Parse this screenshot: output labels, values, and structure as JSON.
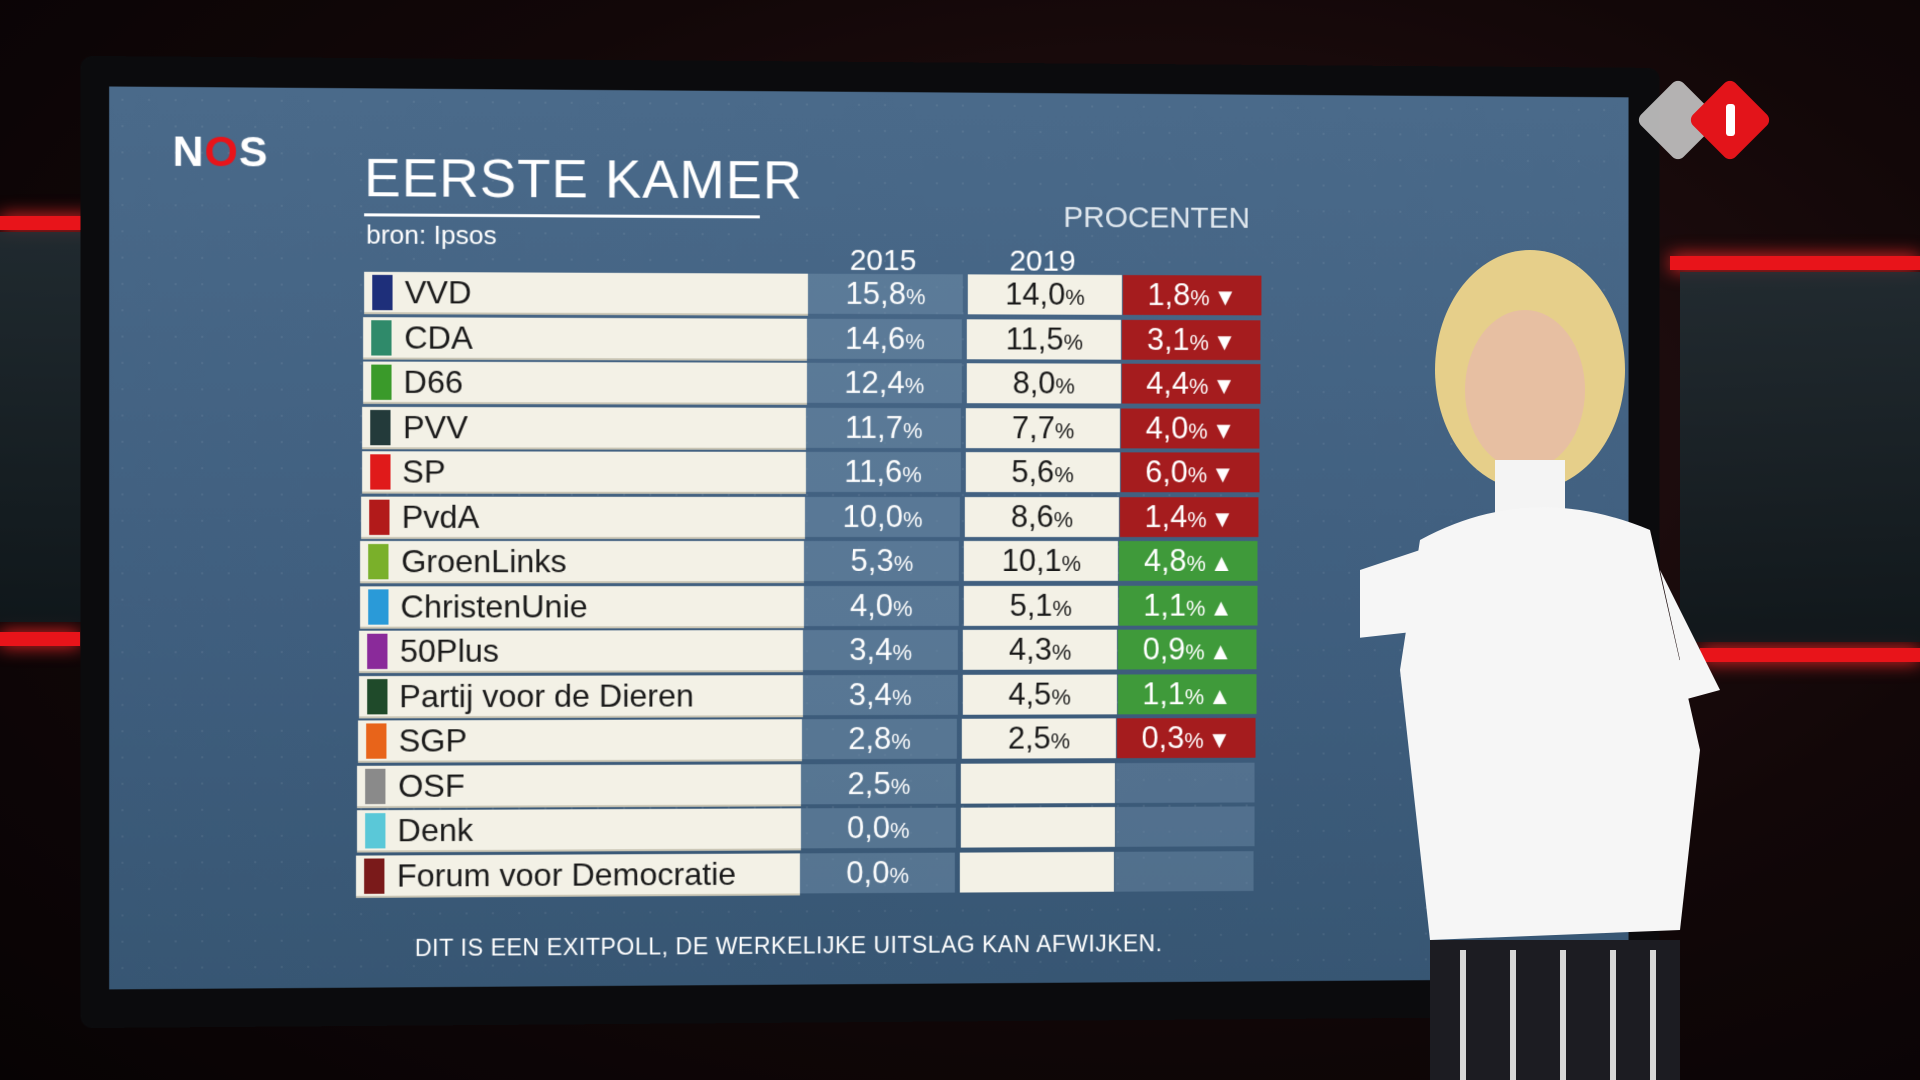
{
  "broadcaster": "NOS",
  "channel_logo": "npo-1-logo",
  "graphic": {
    "title": "EERSTE KAMER",
    "source": "bron: Ipsos",
    "unit": "PROCENTEN",
    "col_2015": "2015",
    "col_2019": "2019",
    "footer": "DIT IS EEN EXITPOLL, DE WERKELIJKE UITSLAG KAN AFWIJKEN.",
    "parties": [
      {
        "name": "VVD",
        "color": "#1e2f7a",
        "v2015": "15,8",
        "v2019": "14,0",
        "change": "1,8",
        "dir": "down"
      },
      {
        "name": "CDA",
        "color": "#2f8a6a",
        "v2015": "14,6",
        "v2019": "11,5",
        "change": "3,1",
        "dir": "down"
      },
      {
        "name": "D66",
        "color": "#3a9a2a",
        "v2015": "12,4",
        "v2019": "8,0",
        "change": "4,4",
        "dir": "down"
      },
      {
        "name": "PVV",
        "color": "#233a3a",
        "v2015": "11,7",
        "v2019": "7,7",
        "change": "4,0",
        "dir": "down"
      },
      {
        "name": "SP",
        "color": "#e01a1a",
        "v2015": "11,6",
        "v2019": "5,6",
        "change": "6,0",
        "dir": "down"
      },
      {
        "name": "PvdA",
        "color": "#b21a1a",
        "v2015": "10,0",
        "v2019": "8,6",
        "change": "1,4",
        "dir": "down"
      },
      {
        "name": "GroenLinks",
        "color": "#7ab02a",
        "v2015": "5,3",
        "v2019": "10,1",
        "change": "4,8",
        "dir": "up"
      },
      {
        "name": "ChristenUnie",
        "color": "#2a9ad8",
        "v2015": "4,0",
        "v2019": "5,1",
        "change": "1,1",
        "dir": "up"
      },
      {
        "name": "50Plus",
        "color": "#8a2a9a",
        "v2015": "3,4",
        "v2019": "4,3",
        "change": "0,9",
        "dir": "up"
      },
      {
        "name": "Partij voor de Dieren",
        "color": "#1f4a2a",
        "v2015": "3,4",
        "v2019": "4,5",
        "change": "1,1",
        "dir": "up"
      },
      {
        "name": "SGP",
        "color": "#e8641a",
        "v2015": "2,8",
        "v2019": "2,5",
        "change": "0,3",
        "dir": "down"
      },
      {
        "name": "OSF",
        "color": "#8a8a8a",
        "v2015": "2,5",
        "v2019": "",
        "change": "",
        "dir": "none"
      },
      {
        "name": "Denk",
        "color": "#5ac8d8",
        "v2015": "0,0",
        "v2019": "",
        "change": "",
        "dir": "none"
      },
      {
        "name": "Forum voor Democratie",
        "color": "#7a1a1a",
        "v2015": "0,0",
        "v2019": "",
        "change": "",
        "dir": "none"
      }
    ]
  }
}
